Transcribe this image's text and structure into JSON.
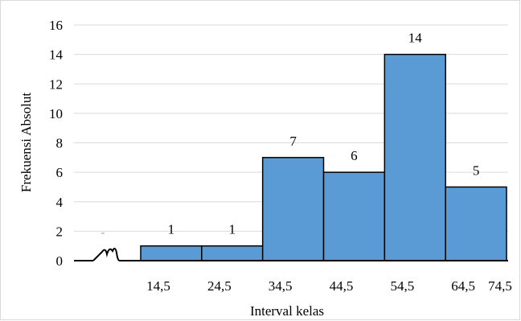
{
  "chart_data": {
    "type": "bar",
    "histogram": true,
    "bins": [
      {
        "from": 14.5,
        "to": 24.5,
        "value": 1
      },
      {
        "from": 24.5,
        "to": 34.5,
        "value": 1
      },
      {
        "from": 34.5,
        "to": 44.5,
        "value": 7
      },
      {
        "from": 44.5,
        "to": 54.5,
        "value": 6
      },
      {
        "from": 54.5,
        "to": 64.5,
        "value": 14
      },
      {
        "from": 64.5,
        "to": 74.5,
        "value": 5
      }
    ],
    "x_tick_labels": [
      "14,5",
      "24,5",
      "34,5",
      "44,5",
      "54,5",
      "64,5",
      "74,5"
    ],
    "y_tick_labels": [
      "0",
      "2",
      "4",
      "6",
      "8",
      "10",
      "12",
      "14",
      "16"
    ],
    "ylim": [
      0,
      16
    ],
    "y_step": 2,
    "xlabel": "Interval kelas",
    "ylabel": "Frekuensi Absolut",
    "data_labels": [
      "1",
      "1",
      "7",
      "6",
      "14",
      "5"
    ],
    "grid": "horizontal",
    "axis_break": true,
    "colors": {
      "bar_fill": "#5b9bd5",
      "bar_stroke": "#000000",
      "grid": "#d9d9d9",
      "axis": "#000000"
    }
  }
}
